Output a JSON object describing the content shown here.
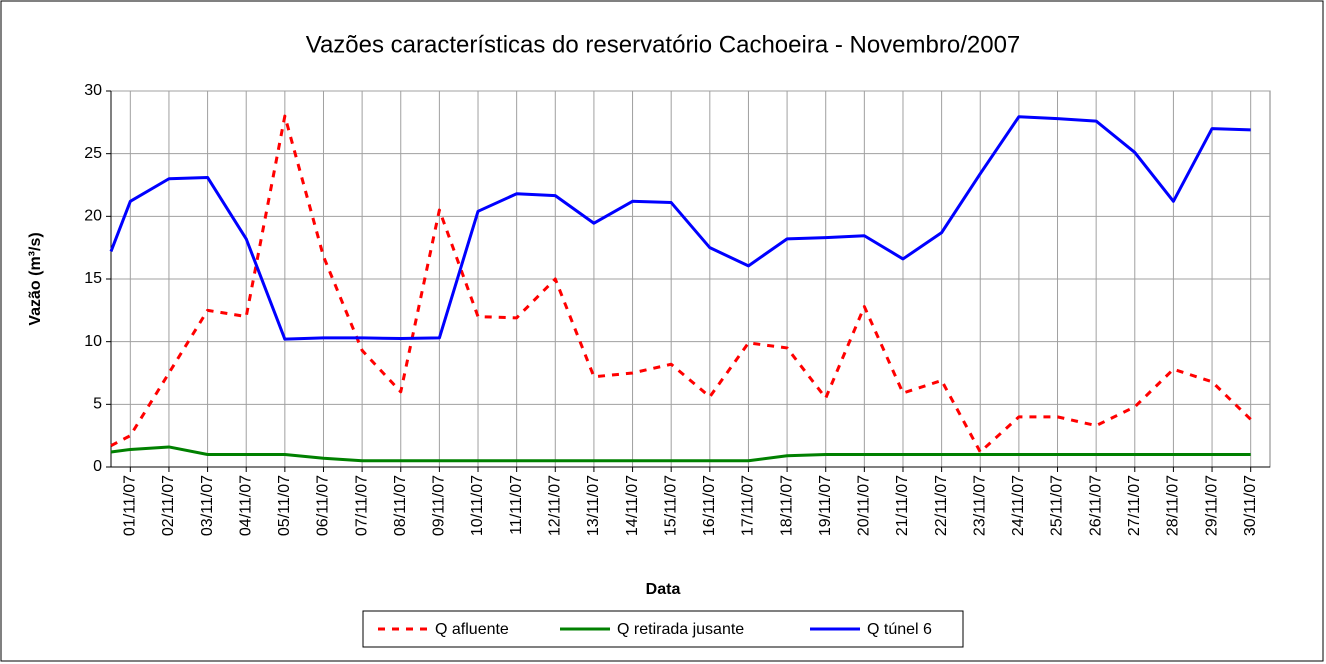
{
  "chart_data": {
    "type": "line",
    "title": "Vazões características do reservatório Cachoeira - Novembro/2007",
    "x_label": "Data",
    "y_label": "Vazão (m³/s)",
    "x": [
      0.5,
      1,
      2,
      3,
      4,
      5,
      6,
      7,
      8,
      9,
      10,
      11,
      12,
      13,
      14,
      15,
      16,
      17,
      18,
      19,
      20,
      21,
      22,
      23,
      24,
      25,
      26,
      27,
      28,
      29,
      30
    ],
    "xlim": [
      0.5,
      30.5
    ],
    "xticks": [
      {
        "value": 1,
        "label": "01/11/07"
      },
      {
        "value": 2,
        "label": "02/11/07"
      },
      {
        "value": 3,
        "label": "03/11/07"
      },
      {
        "value": 4,
        "label": "04/11/07"
      },
      {
        "value": 5,
        "label": "05/11/07"
      },
      {
        "value": 6,
        "label": "06/11/07"
      },
      {
        "value": 7,
        "label": "07/11/07"
      },
      {
        "value": 8,
        "label": "08/11/07"
      },
      {
        "value": 9,
        "label": "09/11/07"
      },
      {
        "value": 10,
        "label": "10/11/07"
      },
      {
        "value": 11,
        "label": "11/11/07"
      },
      {
        "value": 12,
        "label": "12/11/07"
      },
      {
        "value": 13,
        "label": "13/11/07"
      },
      {
        "value": 14,
        "label": "14/11/07"
      },
      {
        "value": 15,
        "label": "15/11/07"
      },
      {
        "value": 16,
        "label": "16/11/07"
      },
      {
        "value": 17,
        "label": "17/11/07"
      },
      {
        "value": 18,
        "label": "18/11/07"
      },
      {
        "value": 19,
        "label": "19/11/07"
      },
      {
        "value": 20,
        "label": "20/11/07"
      },
      {
        "value": 21,
        "label": "21/11/07"
      },
      {
        "value": 22,
        "label": "22/11/07"
      },
      {
        "value": 23,
        "label": "23/11/07"
      },
      {
        "value": 24,
        "label": "24/11/07"
      },
      {
        "value": 25,
        "label": "25/11/07"
      },
      {
        "value": 26,
        "label": "26/11/07"
      },
      {
        "value": 27,
        "label": "27/11/07"
      },
      {
        "value": 28,
        "label": "28/11/07"
      },
      {
        "value": 29,
        "label": "29/11/07"
      },
      {
        "value": 30,
        "label": "30/11/07"
      }
    ],
    "ylim": [
      0,
      30
    ],
    "yticks": [
      0,
      5,
      10,
      15,
      20,
      25,
      30
    ],
    "grid": true,
    "legend": "bottom",
    "series": [
      {
        "name": "Q afluente",
        "color": "#ff0000",
        "dashed": true,
        "values": [
          1.7,
          2.5,
          7.5,
          12.5,
          12.0,
          28.0,
          16.8,
          9.3,
          6.0,
          20.5,
          12.0,
          11.9,
          15.0,
          7.2,
          7.5,
          8.2,
          5.6,
          9.9,
          9.5,
          5.5,
          12.8,
          5.9,
          6.9,
          1.2,
          4.0,
          4.0,
          3.3,
          4.8,
          7.8,
          6.8,
          3.8
        ]
      },
      {
        "name": "Q retirada jusante",
        "color": "#008000",
        "values": [
          1.2,
          1.4,
          1.6,
          1.0,
          1.0,
          1.0,
          0.7,
          0.5,
          0.5,
          0.5,
          0.5,
          0.5,
          0.5,
          0.5,
          0.5,
          0.5,
          0.5,
          0.5,
          0.9,
          1.0,
          1.0,
          1.0,
          1.0,
          1.0,
          1.0,
          1.0,
          1.0,
          1.0,
          1.0,
          1.0,
          1.0
        ]
      },
      {
        "name": "Q túnel 6",
        "color": "#0000ff",
        "values": [
          17.2,
          21.2,
          23.0,
          23.1,
          18.2,
          10.2,
          10.3,
          10.3,
          10.25,
          10.3,
          20.4,
          21.8,
          21.65,
          19.45,
          21.2,
          21.1,
          17.5,
          16.05,
          18.2,
          18.3,
          18.45,
          16.6,
          18.7,
          23.4,
          27.95,
          27.8,
          27.6,
          25.1,
          21.2,
          27.0,
          26.9
        ]
      }
    ]
  }
}
